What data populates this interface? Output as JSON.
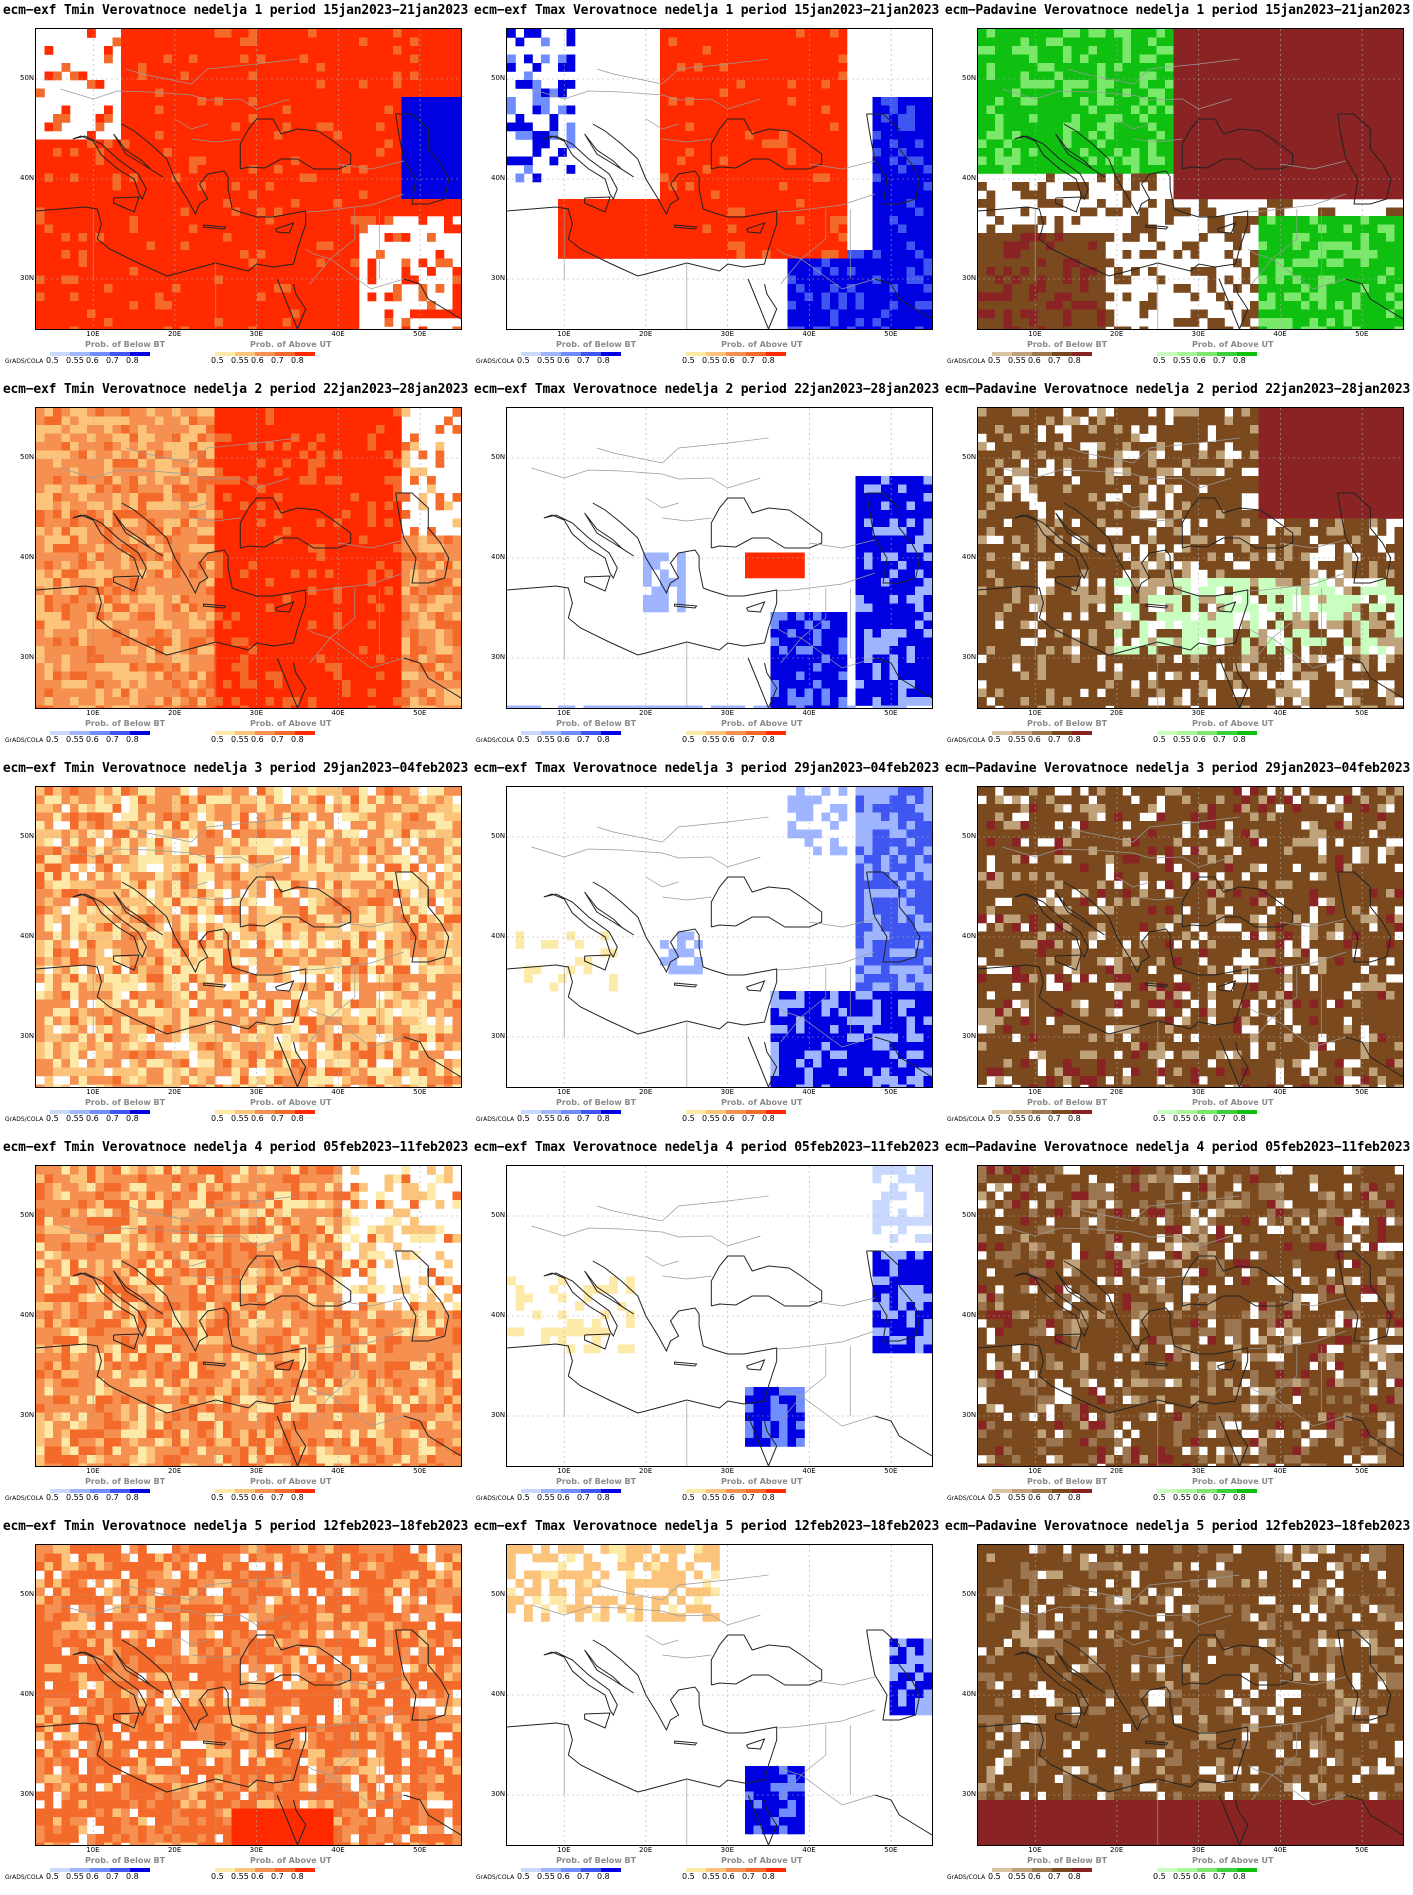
{
  "lat_labels": [
    "50N",
    "40N",
    "30N"
  ],
  "lon_labels": [
    "10E",
    "20E",
    "30E",
    "40E",
    "50E"
  ],
  "grads_label": "GrADS/COLA",
  "legend_values_left": [
    "0.5",
    "0.55",
    "0.6",
    "0.7",
    "0.8"
  ],
  "legend_values_right": [
    "0.5",
    "0.55",
    "0.6",
    "0.7",
    "0.8"
  ],
  "legend_name_below": "Prob. of Below BT",
  "legend_name_above": "Prob. of Above UT",
  "colors": {
    "red_scale": [
      "#fde9a8",
      "#fbc47a",
      "#f59050",
      "#f46a2a",
      "#ff2a00"
    ],
    "blue_scale": [
      "#c8d8ff",
      "#9fb5ff",
      "#6f8dff",
      "#3f57f0",
      "#0000e0"
    ],
    "brown_scale": [
      "#d8c4a0",
      "#bfa27a",
      "#9c7650",
      "#7a4a1e",
      "#8a2323"
    ],
    "green_scale": [
      "#c8ffc0",
      "#a8f59a",
      "#7ae86a",
      "#3bd03a",
      "#10c010"
    ]
  },
  "panels": [
    {
      "title": "ecm−exf Tmin Verovatnoce nedelja 1 period 15jan2023−21jan2023",
      "var": "tmin",
      "week": 1,
      "legend_left": "blue",
      "legend_right": "red"
    },
    {
      "title": "ecm−exf Tmax Verovatnoce nedelja 1 period 15jan2023−21jan2023",
      "var": "tmax",
      "week": 1,
      "legend_left": "blue",
      "legend_right": "red"
    },
    {
      "title": "ecm−Padavine Verovatnoce nedelja 1 period 15jan2023−21jan2023",
      "var": "precip",
      "week": 1,
      "legend_left": "brown",
      "legend_right": "green"
    },
    {
      "title": "ecm−exf Tmin Verovatnoce nedelja 2 period 22jan2023−28jan2023",
      "var": "tmin",
      "week": 2,
      "legend_left": "blue",
      "legend_right": "red"
    },
    {
      "title": "ecm−exf Tmax Verovatnoce nedelja 2 period 22jan2023−28jan2023",
      "var": "tmax",
      "week": 2,
      "legend_left": "blue",
      "legend_right": "red"
    },
    {
      "title": "ecm−Padavine Verovatnoce nedelja 2 period 22jan2023−28jan2023",
      "var": "precip",
      "week": 2,
      "legend_left": "brown",
      "legend_right": "green"
    },
    {
      "title": "ecm−exf Tmin Verovatnoce nedelja 3 period 29jan2023−04feb2023",
      "var": "tmin",
      "week": 3,
      "legend_left": "blue",
      "legend_right": "red"
    },
    {
      "title": "ecm−exf Tmax Verovatnoce nedelja 3 period 29jan2023−04feb2023",
      "var": "tmax",
      "week": 3,
      "legend_left": "blue",
      "legend_right": "red"
    },
    {
      "title": "ecm−Padavine Verovatnoce nedelja 3 period 29jan2023−04feb2023",
      "var": "precip",
      "week": 3,
      "legend_left": "brown",
      "legend_right": "green"
    },
    {
      "title": "ecm−exf Tmin Verovatnoce nedelja 4 period 05feb2023−11feb2023",
      "var": "tmin",
      "week": 4,
      "legend_left": "blue",
      "legend_right": "red"
    },
    {
      "title": "ecm−exf Tmax Verovatnoce nedelja 4 period 05feb2023−11feb2023",
      "var": "tmax",
      "week": 4,
      "legend_left": "blue",
      "legend_right": "red"
    },
    {
      "title": "ecm−Padavine Verovatnoce nedelja 4 period 05feb2023−11feb2023",
      "var": "precip",
      "week": 4,
      "legend_left": "brown",
      "legend_right": "green"
    },
    {
      "title": "ecm−exf Tmin Verovatnoce nedelja 5 period 12feb2023−18feb2023",
      "var": "tmin",
      "week": 5,
      "legend_left": "blue",
      "legend_right": "red"
    },
    {
      "title": "ecm−exf Tmax Verovatnoce nedelja 5 period 12feb2023−18feb2023",
      "var": "tmax",
      "week": 5,
      "legend_left": "blue",
      "legend_right": "red"
    },
    {
      "title": "ecm−Padavine Verovatnoce nedelja 5 period 12feb2023−18feb2023",
      "var": "precip",
      "week": 5,
      "legend_left": "brown",
      "legend_right": "green"
    }
  ]
}
